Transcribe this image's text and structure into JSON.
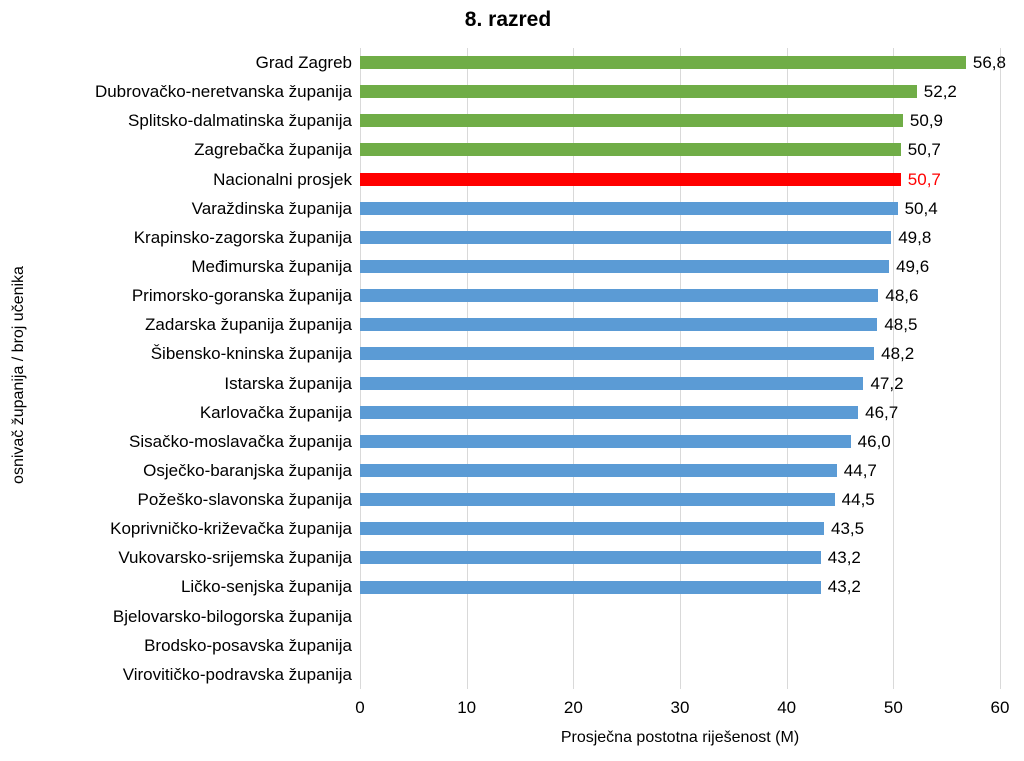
{
  "chart_data": {
    "type": "bar",
    "orientation": "horizontal",
    "title": "8. razred",
    "xlabel": "Prosječna postotna riješenost (M)",
    "ylabel": "osnivač županija / broj učenika",
    "xlim": [
      0,
      60
    ],
    "xticks": [
      0,
      10,
      20,
      30,
      40,
      50,
      60
    ],
    "grid": "vertical-gridlines-on",
    "legend": "none",
    "categories": [
      "Grad Zagreb",
      "Dubrovačko-neretvanska županija",
      "Splitsko-dalmatinska županija",
      "Zagrebačka županija",
      "Nacionalni prosjek",
      "Varaždinska županija",
      "Krapinsko-zagorska županija",
      "Međimurska županija",
      "Primorsko-goranska županija",
      "Zadarska županija županija",
      "Šibensko-kninska županija",
      "Istarska županija",
      "Karlovačka županija",
      "Sisačko-moslavačka županija",
      "Osječko-baranjska županija",
      "Požeško-slavonska županija",
      "Koprivničko-križevačka županija",
      "Vukovarsko-srijemska županija",
      "Ličko-senjska županija",
      "Bjelovarsko-bilogorska županija",
      "Brodsko-posavska županija",
      "Virovitičko-podravska županija"
    ],
    "values": [
      56.8,
      52.2,
      50.9,
      50.7,
      50.7,
      50.4,
      49.8,
      49.6,
      48.6,
      48.5,
      48.2,
      47.2,
      46.7,
      46.0,
      44.7,
      44.5,
      43.5,
      43.2,
      43.2,
      null,
      null,
      null
    ],
    "value_labels": [
      "56,8",
      "52,2",
      "50,9",
      "50,7",
      "50,7",
      "50,4",
      "49,8",
      "49,6",
      "48,6",
      "48,5",
      "48,2",
      "47,2",
      "46,7",
      "46,0",
      "44,7",
      "44,5",
      "43,5",
      "43,2",
      "43,2",
      null,
      null,
      null
    ],
    "bar_colors": [
      "green",
      "green",
      "green",
      "green",
      "red",
      "blue",
      "blue",
      "blue",
      "blue",
      "blue",
      "blue",
      "blue",
      "blue",
      "blue",
      "blue",
      "blue",
      "blue",
      "blue",
      "blue",
      null,
      null,
      null
    ],
    "palette": {
      "green": "#70ad47",
      "blue": "#5b9bd5",
      "red": "#ff0000",
      "gridline": "#d9d9d9",
      "text": "#000000"
    }
  }
}
